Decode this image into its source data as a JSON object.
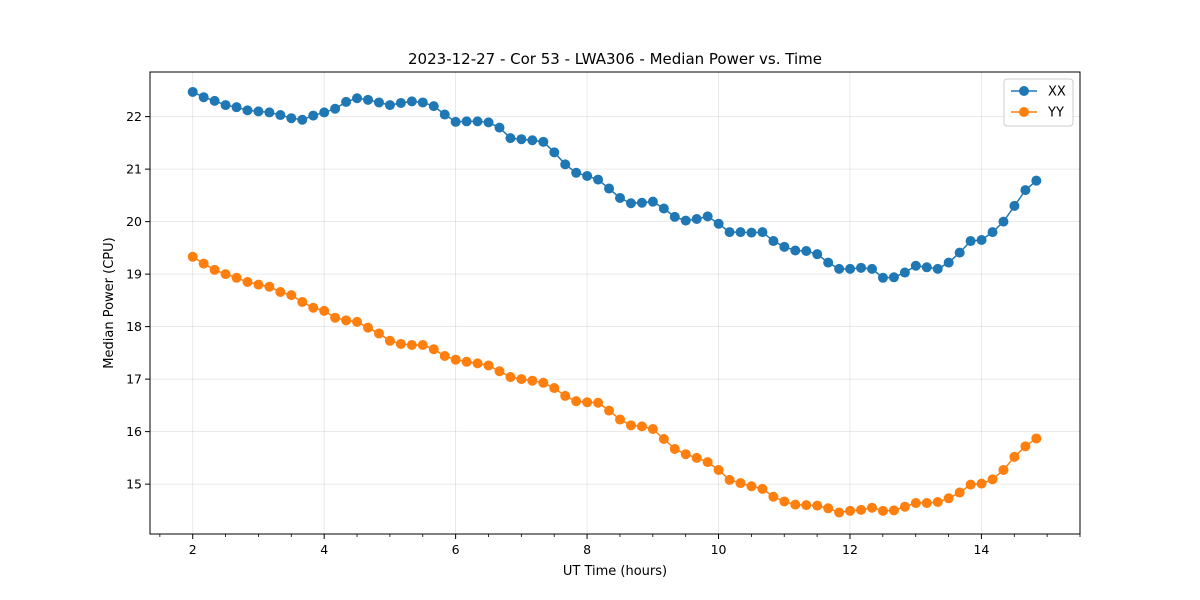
{
  "chart_data": {
    "type": "line",
    "title": "2023-12-27 - Cor 53 - LWA306 - Median Power vs. Time",
    "xlabel": "UT Time (hours)",
    "ylabel": "Median Power (CPU)",
    "xlim": [
      1.35,
      15.5
    ],
    "ylim": [
      14.05,
      22.85
    ],
    "xticks": [
      2,
      4,
      6,
      8,
      10,
      12,
      14
    ],
    "yticks": [
      15,
      16,
      17,
      18,
      19,
      20,
      21,
      22
    ],
    "x_minor_step": 0.5,
    "grid": true,
    "legend_position": "top-right",
    "x_start": 2.0,
    "x_step": 0.1667,
    "series": [
      {
        "name": "XX",
        "color": "#1f77b4",
        "values": [
          22.47,
          22.37,
          22.3,
          22.22,
          22.18,
          22.12,
          22.1,
          22.08,
          22.03,
          21.97,
          21.94,
          22.02,
          22.08,
          22.15,
          22.28,
          22.35,
          22.32,
          22.27,
          22.22,
          22.26,
          22.29,
          22.27,
          22.2,
          22.04,
          21.9,
          21.91,
          21.91,
          21.89,
          21.79,
          21.59,
          21.57,
          21.55,
          21.52,
          21.32,
          21.09,
          20.93,
          20.87,
          20.8,
          20.63,
          20.45,
          20.35,
          20.36,
          20.38,
          20.25,
          20.09,
          20.02,
          20.05,
          20.1,
          19.96,
          19.8,
          19.8,
          19.79,
          19.8,
          19.63,
          19.52,
          19.45,
          19.44,
          19.38,
          19.22,
          19.1,
          19.1,
          19.12,
          19.1,
          18.93,
          18.94,
          19.03,
          19.16,
          19.13,
          19.1,
          19.22,
          19.41,
          19.63,
          19.65,
          19.8,
          20.0,
          20.3,
          20.6,
          20.78
        ]
      },
      {
        "name": "YY",
        "color": "#ff7f0e",
        "values": [
          19.33,
          19.2,
          19.08,
          19.0,
          18.93,
          18.85,
          18.8,
          18.76,
          18.66,
          18.6,
          18.47,
          18.36,
          18.3,
          18.17,
          18.12,
          18.09,
          17.98,
          17.87,
          17.73,
          17.67,
          17.65,
          17.65,
          17.57,
          17.44,
          17.37,
          17.33,
          17.3,
          17.26,
          17.15,
          17.04,
          17.0,
          16.97,
          16.93,
          16.83,
          16.68,
          16.58,
          16.56,
          16.55,
          16.4,
          16.23,
          16.12,
          16.1,
          16.05,
          15.86,
          15.67,
          15.57,
          15.5,
          15.42,
          15.27,
          15.08,
          15.02,
          14.96,
          14.91,
          14.76,
          14.67,
          14.61,
          14.6,
          14.59,
          14.54,
          14.46,
          14.49,
          14.51,
          14.55,
          14.49,
          14.5,
          14.57,
          14.64,
          14.64,
          14.66,
          14.73,
          14.84,
          14.99,
          15.01,
          15.09,
          15.27,
          15.52,
          15.72,
          15.87
        ]
      }
    ]
  }
}
